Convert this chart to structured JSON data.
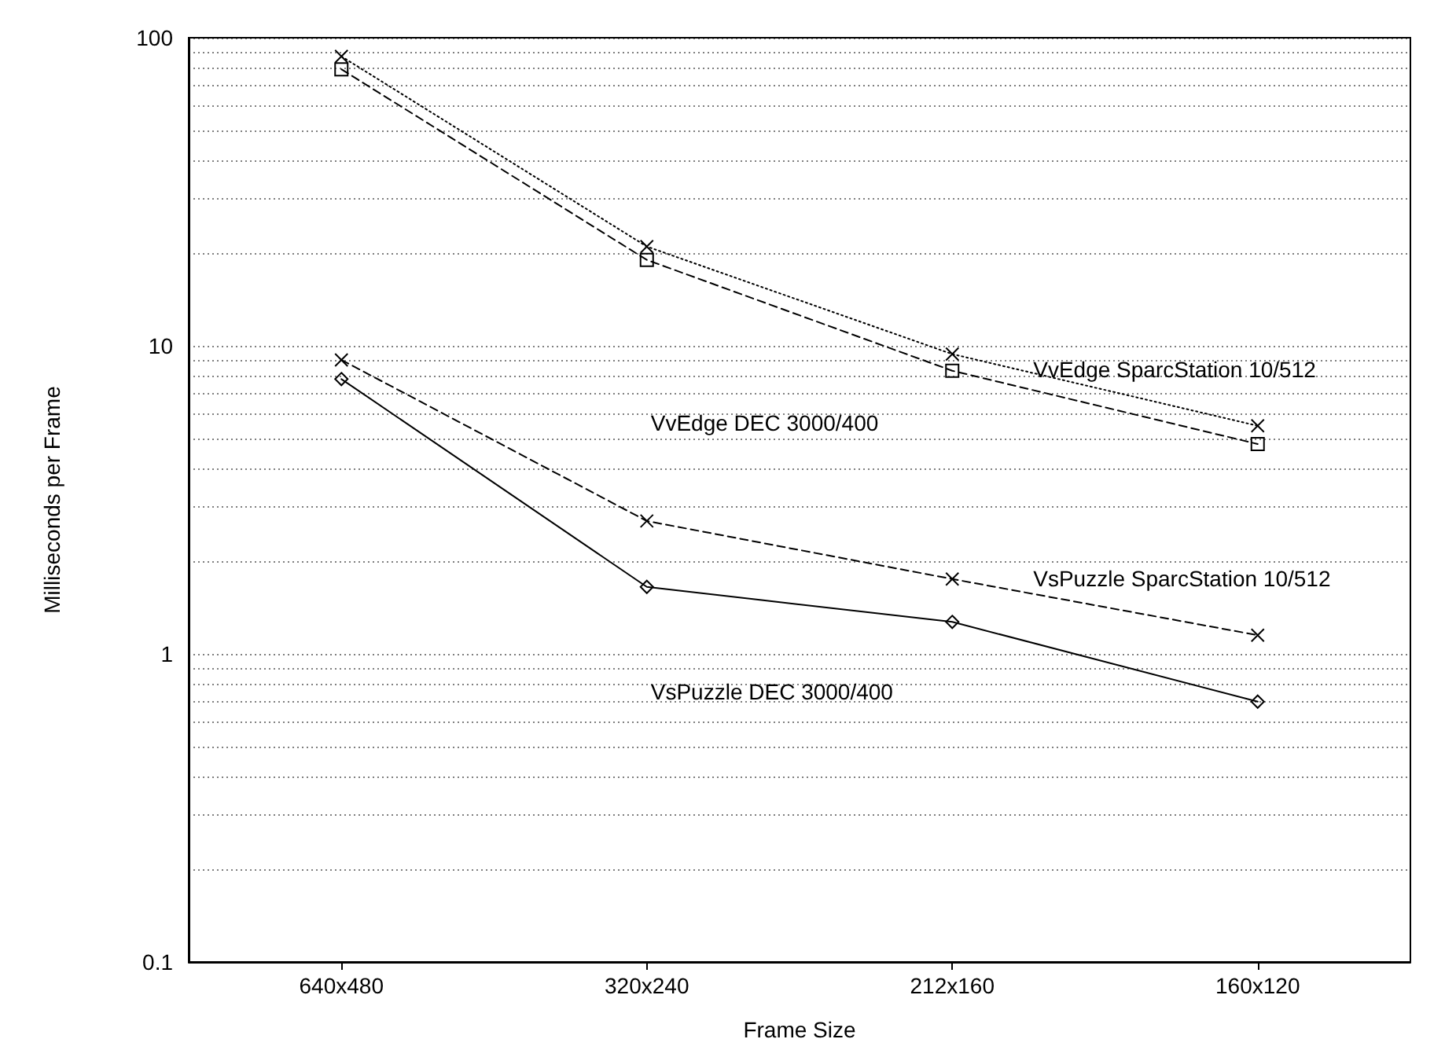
{
  "chart_data": {
    "type": "line",
    "xlabel": "Frame Size",
    "ylabel": "Milliseconds per Frame",
    "categories": [
      "640x480",
      "320x240",
      "212x160",
      "160x120"
    ],
    "ylim": [
      0.1,
      100
    ],
    "yticks": [
      0.1,
      {
        "value": 0.2,
        "label": null
      },
      {
        "value": 0.3,
        "label": null
      },
      {
        "value": 0.4,
        "label": null
      },
      {
        "value": 0.5,
        "label": null
      },
      {
        "value": 0.6,
        "label": null
      },
      {
        "value": 0.7,
        "label": null
      },
      {
        "value": 0.8,
        "label": null
      },
      {
        "value": 0.9,
        "label": null
      },
      1,
      {
        "value": 2,
        "label": null
      },
      {
        "value": 3,
        "label": null
      },
      {
        "value": 4,
        "label": null
      },
      {
        "value": 5,
        "label": null
      },
      {
        "value": 6,
        "label": null
      },
      {
        "value": 7,
        "label": null
      },
      {
        "value": 8,
        "label": null
      },
      {
        "value": 9,
        "label": null
      },
      10,
      {
        "value": 20,
        "label": null
      },
      {
        "value": 30,
        "label": null
      },
      {
        "value": 40,
        "label": null
      },
      {
        "value": 50,
        "label": null
      },
      {
        "value": 60,
        "label": null
      },
      {
        "value": 70,
        "label": null
      },
      {
        "value": 80,
        "label": null
      },
      {
        "value": 90,
        "label": null
      },
      100
    ],
    "log": "y",
    "grid": "y",
    "legend": false,
    "series": [
      {
        "name": "VvEdge SparcStation 10/512",
        "color": "#000000",
        "marker": "cross",
        "line_style": "dotted",
        "values": [
          87,
          21,
          9.4,
          5.5
        ]
      },
      {
        "name": "VvEdge DEC 3000/400",
        "color": "#000000",
        "marker": "square",
        "line_style": "dashed",
        "values": [
          79,
          19,
          8.3,
          4.8
        ]
      },
      {
        "name": "VsPuzzle SparcStation 10/512",
        "color": "#000000",
        "marker": "cross",
        "line_style": "dashed",
        "values": [
          9,
          2.7,
          1.75,
          1.15
        ]
      },
      {
        "name": "VsPuzzle DEC 3000/400",
        "color": "#000000",
        "marker": "diamond",
        "line_style": "solid",
        "values": [
          7.8,
          1.65,
          1.27,
          0.7
        ]
      }
    ]
  }
}
